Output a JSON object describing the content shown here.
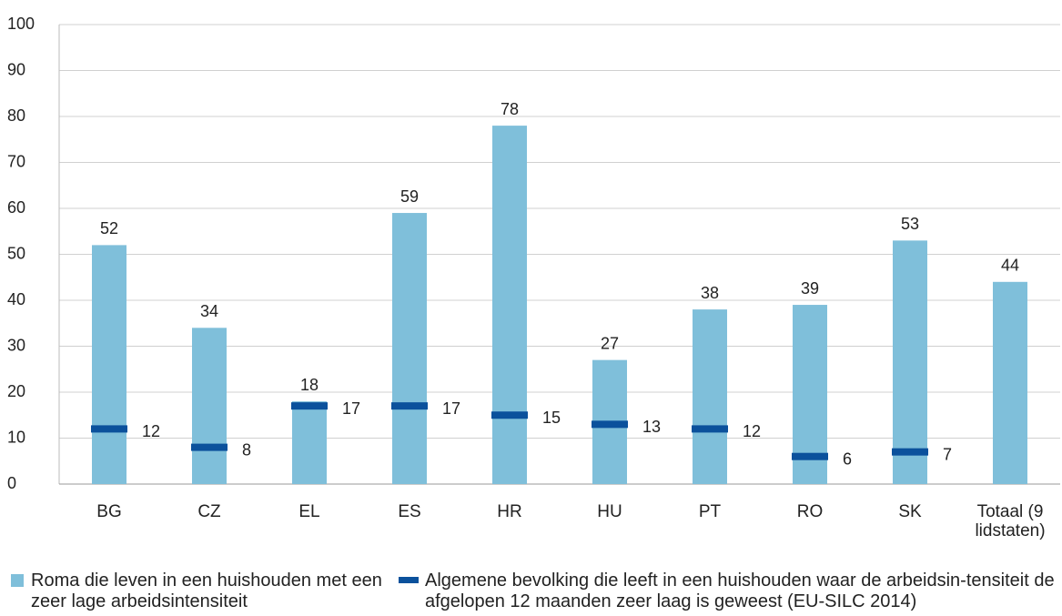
{
  "chart_data": {
    "type": "bar",
    "categories": [
      "BG",
      "CZ",
      "EL",
      "ES",
      "HR",
      "HU",
      "PT",
      "RO",
      "SK",
      "Totaal (9 lidstaten)"
    ],
    "series": [
      {
        "name": "Roma die leven in een huishouden met een zeer lage arbeidsintensiteit",
        "color": "#7fbfda",
        "values": [
          52,
          34,
          18,
          59,
          78,
          27,
          38,
          39,
          53,
          44
        ]
      },
      {
        "name": "Algemene bevolking die leeft in een huishouden waar de arbeidsin-tensiteit de afgelopen 12 maanden zeer laag is geweest (EU-SILC 2014)",
        "color": "#0b519c",
        "values": [
          12,
          8,
          17,
          17,
          15,
          13,
          12,
          6,
          7,
          null
        ]
      }
    ],
    "ylim": [
      0,
      100
    ],
    "yticks": [
      0,
      10,
      20,
      30,
      40,
      50,
      60,
      70,
      80,
      90,
      100
    ],
    "grid": true
  }
}
